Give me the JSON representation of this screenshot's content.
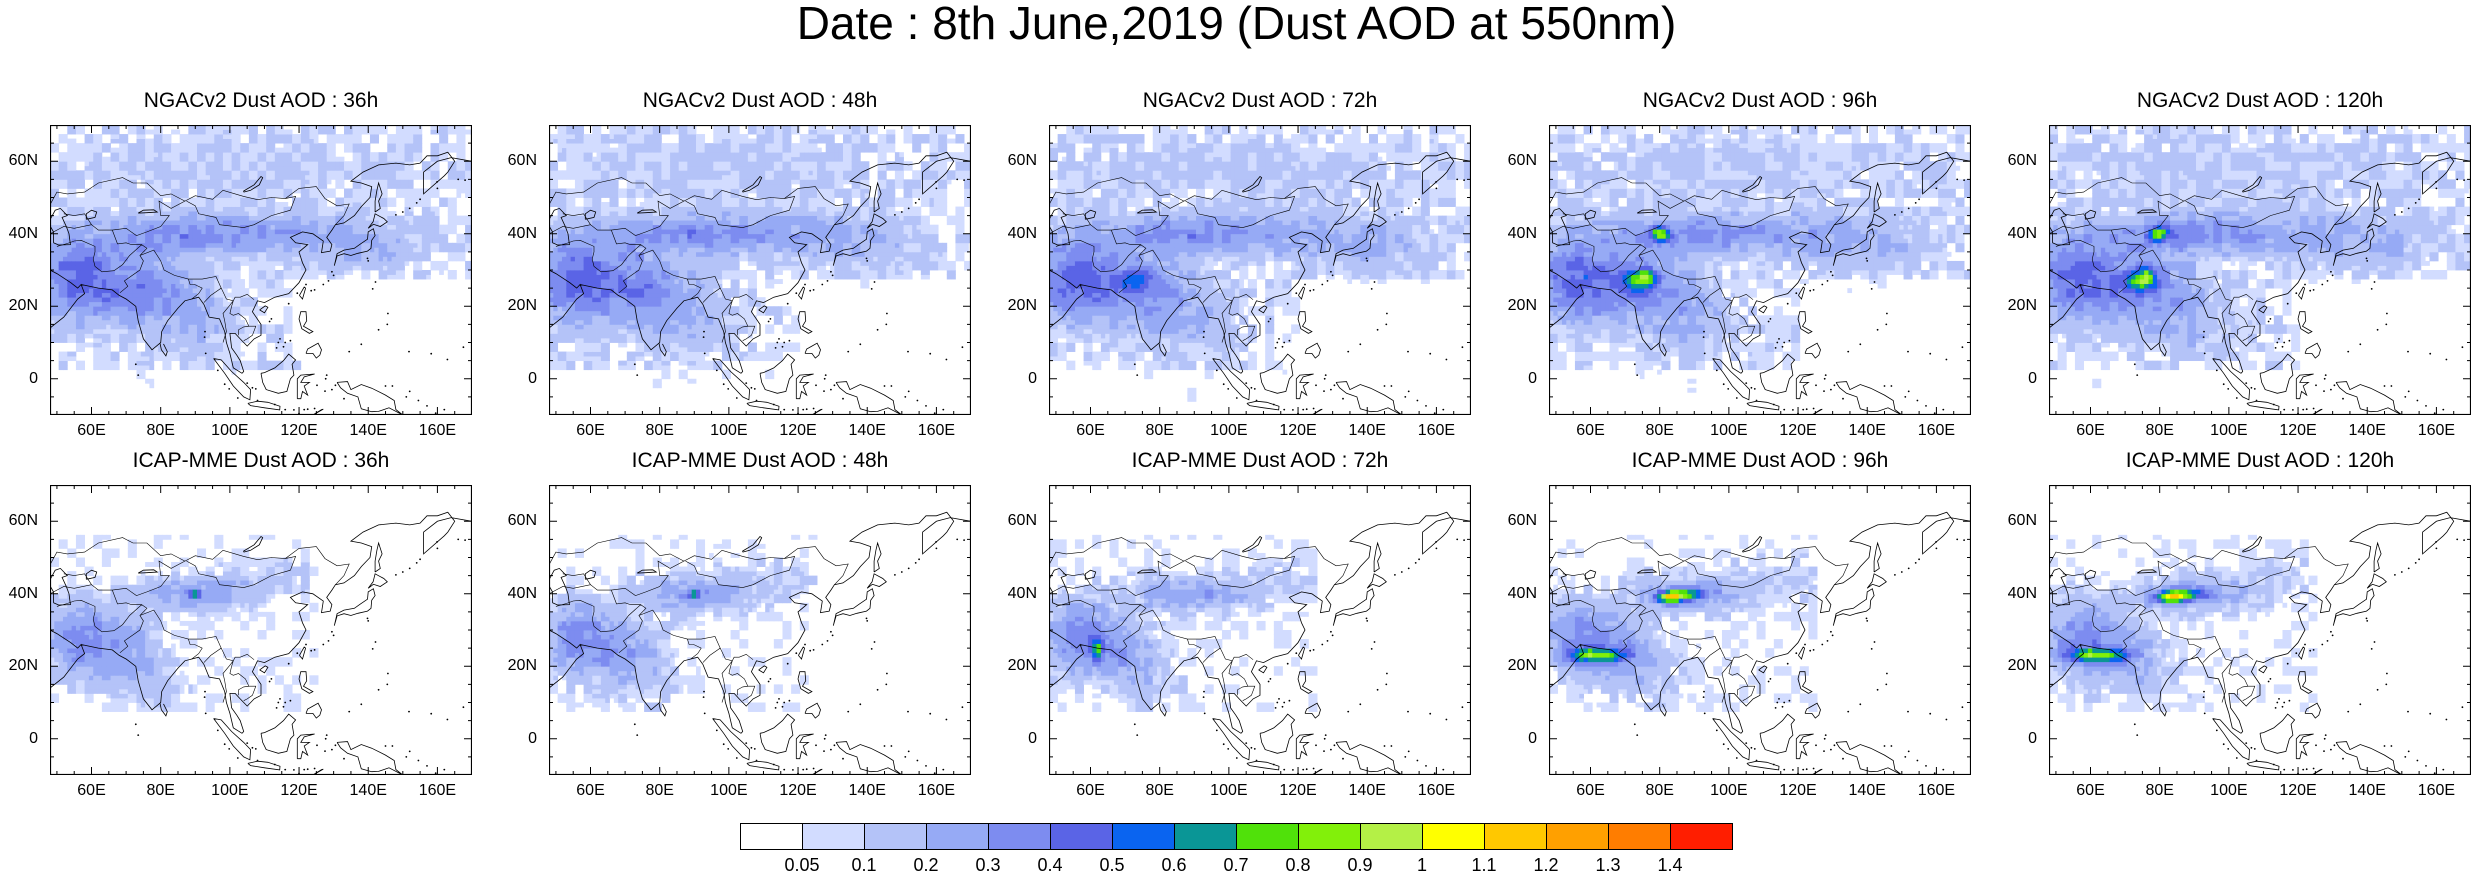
{
  "title": "Date : 8th June,2019 (Dust AOD at 550nm)",
  "panels": [
    {
      "title": "NGACv2 Dust AOD : 36h"
    },
    {
      "title": "NGACv2 Dust AOD : 48h"
    },
    {
      "title": "NGACv2 Dust AOD : 72h"
    },
    {
      "title": "NGACv2 Dust AOD : 96h"
    },
    {
      "title": "NGACv2 Dust AOD : 120h"
    },
    {
      "title": "ICAP-MME Dust AOD : 36h"
    },
    {
      "title": "ICAP-MME Dust AOD : 48h"
    },
    {
      "title": "ICAP-MME Dust AOD : 72h"
    },
    {
      "title": "ICAP-MME Dust AOD : 96h"
    },
    {
      "title": "ICAP-MME Dust AOD : 120h"
    }
  ],
  "axes": {
    "lon_range": [
      48,
      170
    ],
    "lat_range": [
      -10,
      70
    ],
    "x_ticks": [
      {
        "value": 60,
        "label": "60E"
      },
      {
        "value": 80,
        "label": "80E"
      },
      {
        "value": 100,
        "label": "100E"
      },
      {
        "value": 120,
        "label": "120E"
      },
      {
        "value": 140,
        "label": "140E"
      },
      {
        "value": 160,
        "label": "160E"
      }
    ],
    "y_ticks": [
      {
        "value": 60,
        "label": "60N"
      },
      {
        "value": 40,
        "label": "40N"
      },
      {
        "value": 20,
        "label": "20N"
      },
      {
        "value": 0,
        "label": "0"
      }
    ]
  },
  "colorbar": {
    "colors": [
      "#ffffff",
      "#d2dcff",
      "#b4c3f8",
      "#96aaf5",
      "#7d8cf0",
      "#5a64e6",
      "#0a64f0",
      "#0a9696",
      "#50e10a",
      "#82f00a",
      "#b4f046",
      "#ffff00",
      "#ffc800",
      "#ffa000",
      "#ff7d00",
      "#ff1e00"
    ],
    "labels": [
      "0.05",
      "0.1",
      "0.2",
      "0.3",
      "0.4",
      "0.5",
      "0.6",
      "0.7",
      "0.8",
      "0.9",
      "1",
      "1.1",
      "1.2",
      "1.3",
      "1.4"
    ]
  }
}
